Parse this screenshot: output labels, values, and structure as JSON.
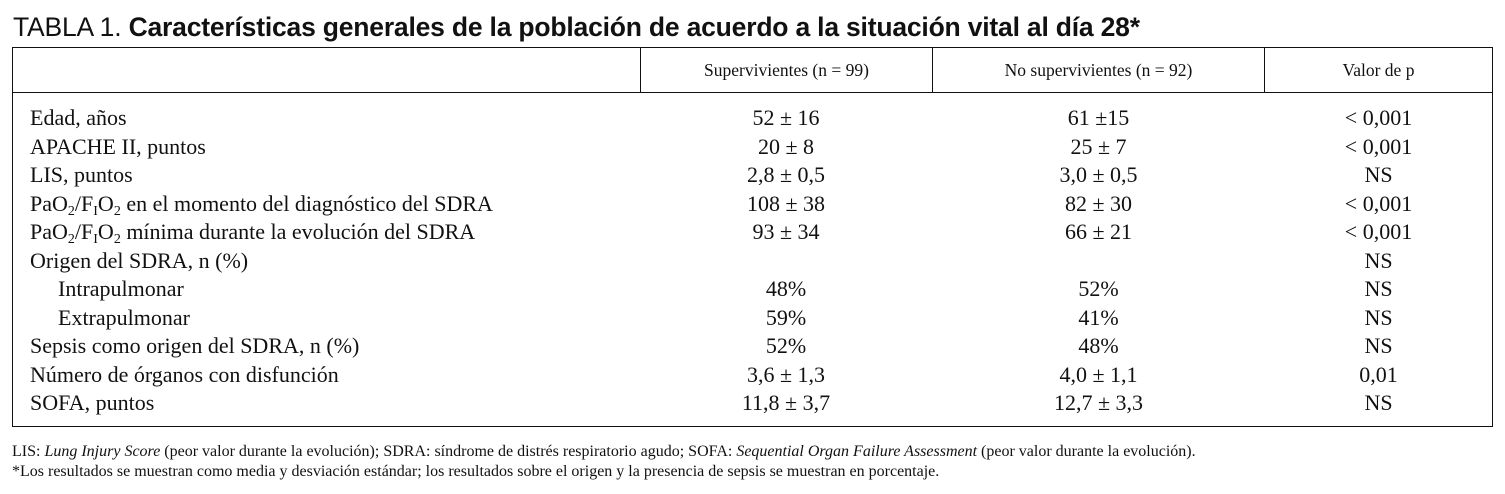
{
  "title": {
    "prefix": "TABLA 1. ",
    "main": "Características generales de la población de acuerdo a la situación vital al día 28*"
  },
  "table": {
    "columns": [
      "",
      "Supervivientes (n = 99)",
      "No supervivientes (n = 92)",
      "Valor de p"
    ],
    "rows": [
      {
        "label": "Edad, años",
        "indent": false,
        "v1": "52 ± 16",
        "v2": "61 ±15",
        "p": "< 0,001"
      },
      {
        "label": "APACHE II, puntos",
        "indent": false,
        "v1": "20 ± 8",
        "v2": "25 ± 7",
        "p": "< 0,001"
      },
      {
        "label": "LIS, puntos",
        "indent": false,
        "v1": "2,8 ± 0,5",
        "v2": "3,0 ± 0,5",
        "p": "NS"
      },
      {
        "label": "PaO2/FIO2 en el momento del diagnóstico del SDRA",
        "indent": false,
        "v1": "108 ± 38",
        "v2": "82 ± 30",
        "p": "< 0,001"
      },
      {
        "label": "PaO2/FIO2 mínima durante la evolución del SDRA",
        "indent": false,
        "v1": "93 ± 34",
        "v2": "66 ± 21",
        "p": "< 0,001"
      },
      {
        "label": "Origen del SDRA, n (%)",
        "indent": false,
        "v1": "",
        "v2": "",
        "p": "NS"
      },
      {
        "label": "Intrapulmonar",
        "indent": true,
        "v1": "48%",
        "v2": "52%",
        "p": "NS"
      },
      {
        "label": "Extrapulmonar",
        "indent": true,
        "v1": "59%",
        "v2": "41%",
        "p": "NS"
      },
      {
        "label": "Sepsis como origen del SDRA, n (%)",
        "indent": false,
        "v1": "52%",
        "v2": "48%",
        "p": "NS"
      },
      {
        "label": "Número de órganos con disfunción",
        "indent": false,
        "v1": "3,6 ± 1,3",
        "v2": "4,0 ± 1,1",
        "p": "0,01"
      },
      {
        "label": "SOFA, puntos",
        "indent": false,
        "v1": "11,8 ± 3,7",
        "v2": "12,7 ± 3,3",
        "p": "NS"
      }
    ]
  },
  "footnotes": {
    "line1": {
      "lis_abbr": "LIS: ",
      "lis_term": "Lung Injury Score",
      "mid": " (peor valor durante la evolución); SDRA: síndrome de distrés respiratorio agudo; SOFA: ",
      "sofa_term": "Sequential Organ Failure Assessment",
      "end": " (peor valor durante la evolución)."
    },
    "line2": "*Los resultados se muestran como media y desviación estándar; los resultados sobre el origen y la presencia de sepsis se muestran en porcentaje."
  }
}
